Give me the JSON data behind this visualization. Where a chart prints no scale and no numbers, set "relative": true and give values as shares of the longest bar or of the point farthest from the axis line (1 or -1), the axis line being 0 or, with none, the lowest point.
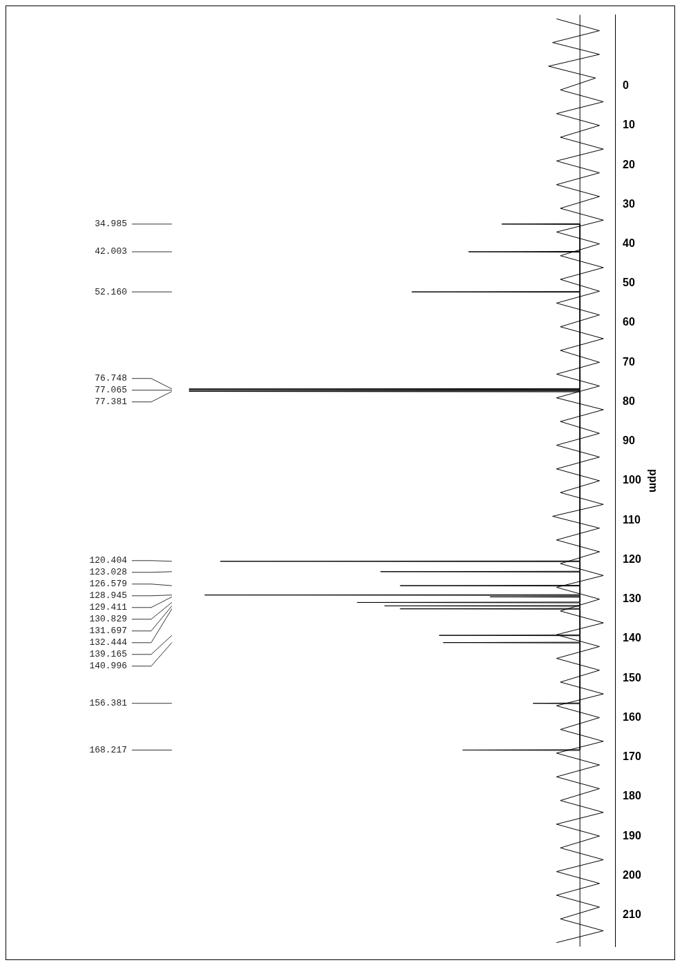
{
  "chart_data": {
    "type": "line",
    "orientation": "horizontal",
    "ylabel": "ppm",
    "relative": true,
    "ylim": [
      218,
      -18
    ],
    "yticks": [
      0,
      10,
      20,
      30,
      40,
      50,
      60,
      70,
      80,
      90,
      100,
      110,
      120,
      130,
      140,
      150,
      160,
      170,
      180,
      190,
      200,
      210
    ],
    "grid": false,
    "legend": false,
    "marker": "none",
    "series": [
      {
        "color": "#000000",
        "x": [
          -17,
          -14,
          -11,
          -8,
          -5,
          -2,
          1,
          4,
          7,
          10,
          13,
          16,
          19,
          22,
          25,
          28,
          31,
          34,
          37,
          40,
          43,
          46,
          49,
          52,
          55,
          58,
          61,
          64,
          67,
          70,
          73,
          76,
          79,
          82,
          85,
          88,
          91,
          94,
          97,
          100,
          103,
          106,
          109,
          112,
          115,
          118,
          121,
          124,
          127,
          130,
          133,
          136,
          139,
          142,
          145,
          148,
          151,
          154,
          157,
          160,
          163,
          166,
          169,
          172,
          175,
          178,
          181,
          184,
          187,
          190,
          193,
          196,
          199,
          202,
          205,
          208,
          211,
          214,
          217
        ],
        "values": [
          -0.06,
          0.05,
          -0.07,
          0.05,
          -0.08,
          0.04,
          -0.05,
          0.06,
          -0.06,
          0.05,
          -0.05,
          0.06,
          -0.06,
          0.05,
          -0.06,
          0.05,
          -0.05,
          0.06,
          -0.06,
          0.05,
          -0.05,
          0.06,
          -0.05,
          0.05,
          -0.06,
          0.05,
          -0.05,
          0.06,
          -0.05,
          0.05,
          -0.06,
          0.05,
          -0.06,
          0.06,
          -0.05,
          0.05,
          -0.06,
          0.05,
          -0.06,
          0.05,
          -0.05,
          0.06,
          -0.07,
          0.05,
          -0.06,
          0.05,
          -0.05,
          0.06,
          -0.06,
          0.05,
          -0.05,
          0.06,
          -0.06,
          0.05,
          -0.06,
          0.05,
          -0.05,
          0.06,
          -0.06,
          0.05,
          -0.05,
          0.06,
          -0.06,
          0.05,
          -0.06,
          0.05,
          -0.05,
          0.06,
          -0.06,
          0.05,
          -0.05,
          0.06,
          -0.06,
          0.05,
          -0.06,
          0.05,
          -0.05,
          0.06,
          -0.06
        ]
      },
      {
        "color": "#000000",
        "x": [
          34.885,
          34.985,
          35.085,
          41.903,
          42.003,
          42.103,
          52.06,
          52.16,
          52.26,
          76.648,
          76.748,
          76.848,
          76.965,
          77.065,
          77.165,
          77.281,
          77.381,
          77.481,
          120.304,
          120.404,
          120.504,
          122.928,
          123.028,
          123.128,
          126.479,
          126.579,
          126.679,
          128.845,
          128.945,
          129.045,
          129.311,
          129.411,
          129.511,
          130.729,
          130.829,
          130.929,
          131.597,
          131.697,
          131.797,
          132.344,
          132.444,
          132.544,
          139.065,
          139.165,
          139.265,
          140.896,
          140.996,
          141.096,
          156.281,
          156.381,
          156.481,
          168.117,
          168.217,
          168.317
        ],
        "values": [
          0,
          -0.2,
          0,
          0,
          -0.285,
          0,
          0,
          -0.43,
          0,
          0,
          -1,
          0,
          0,
          -1,
          0,
          0,
          -1,
          0,
          0,
          -0.92,
          0,
          0,
          -0.51,
          0,
          0,
          -0.46,
          0,
          0,
          -0.96,
          0,
          0,
          -0.23,
          0,
          0,
          -0.57,
          0,
          0,
          -0.5,
          0,
          0,
          -0.46,
          0,
          0,
          -0.36,
          0,
          0,
          -0.35,
          0,
          0,
          -0.12,
          0,
          0,
          -0.3,
          0
        ]
      }
    ],
    "annotations": [
      "34.985",
      "42.003",
      "52.160",
      "76.748",
      "77.065",
      "77.381",
      "120.404",
      "123.028",
      "126.579",
      "128.945",
      "129.411",
      "130.829",
      "131.697",
      "132.444",
      "139.165",
      "140.996",
      "156.381",
      "168.217"
    ]
  }
}
